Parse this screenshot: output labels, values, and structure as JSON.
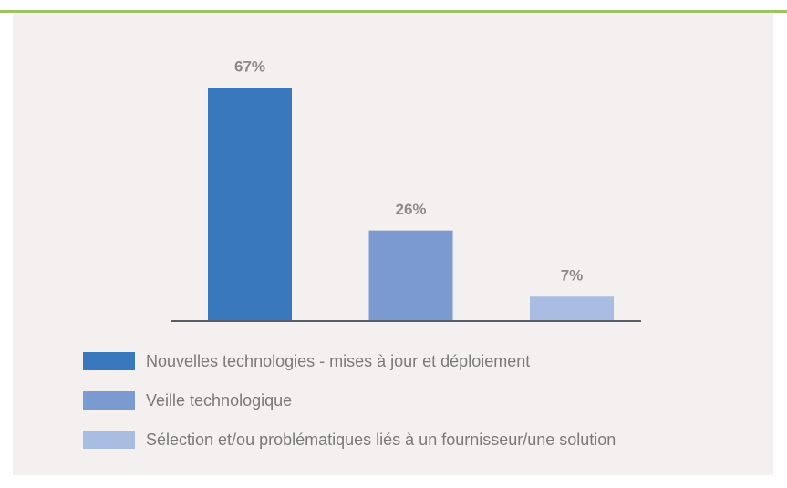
{
  "chart_data": {
    "type": "bar",
    "categories": [
      "Nouvelles technologies - mises à jour et déploiement",
      "Veille technologique",
      "Sélection et/ou problématiques liés à un fournisseur/une solution"
    ],
    "values": [
      67,
      26,
      7
    ],
    "value_labels": [
      "67%",
      "26%",
      "7%"
    ],
    "colors": [
      "#3a78bd",
      "#7b9bd0",
      "#a9bde2"
    ],
    "legend": "bottom"
  }
}
